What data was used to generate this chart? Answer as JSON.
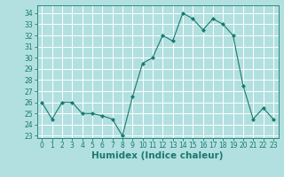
{
  "x": [
    0,
    1,
    2,
    3,
    4,
    5,
    6,
    7,
    8,
    9,
    10,
    11,
    12,
    13,
    14,
    15,
    16,
    17,
    18,
    19,
    20,
    21,
    22,
    23
  ],
  "y": [
    26.0,
    24.5,
    26.0,
    26.0,
    25.0,
    25.0,
    24.8,
    24.5,
    23.0,
    26.5,
    29.5,
    30.0,
    32.0,
    31.5,
    34.0,
    33.5,
    32.5,
    33.5,
    33.0,
    32.0,
    27.5,
    24.5,
    25.5,
    24.5
  ],
  "line_color": "#1a7a6e",
  "marker": "D",
  "marker_size": 2,
  "bg_color": "#b2e0e0",
  "grid_color": "#ffffff",
  "xlabel": "Humidex (Indice chaleur)",
  "xlim": [
    -0.5,
    23.5
  ],
  "ylim": [
    22.8,
    34.7
  ],
  "yticks": [
    23,
    24,
    25,
    26,
    27,
    28,
    29,
    30,
    31,
    32,
    33,
    34
  ],
  "xticks": [
    0,
    1,
    2,
    3,
    4,
    5,
    6,
    7,
    8,
    9,
    10,
    11,
    12,
    13,
    14,
    15,
    16,
    17,
    18,
    19,
    20,
    21,
    22,
    23
  ],
  "tick_color": "#1a7a6e",
  "label_color": "#1a7a6e",
  "font_size_tick": 5.5,
  "font_size_xlabel": 7.5
}
